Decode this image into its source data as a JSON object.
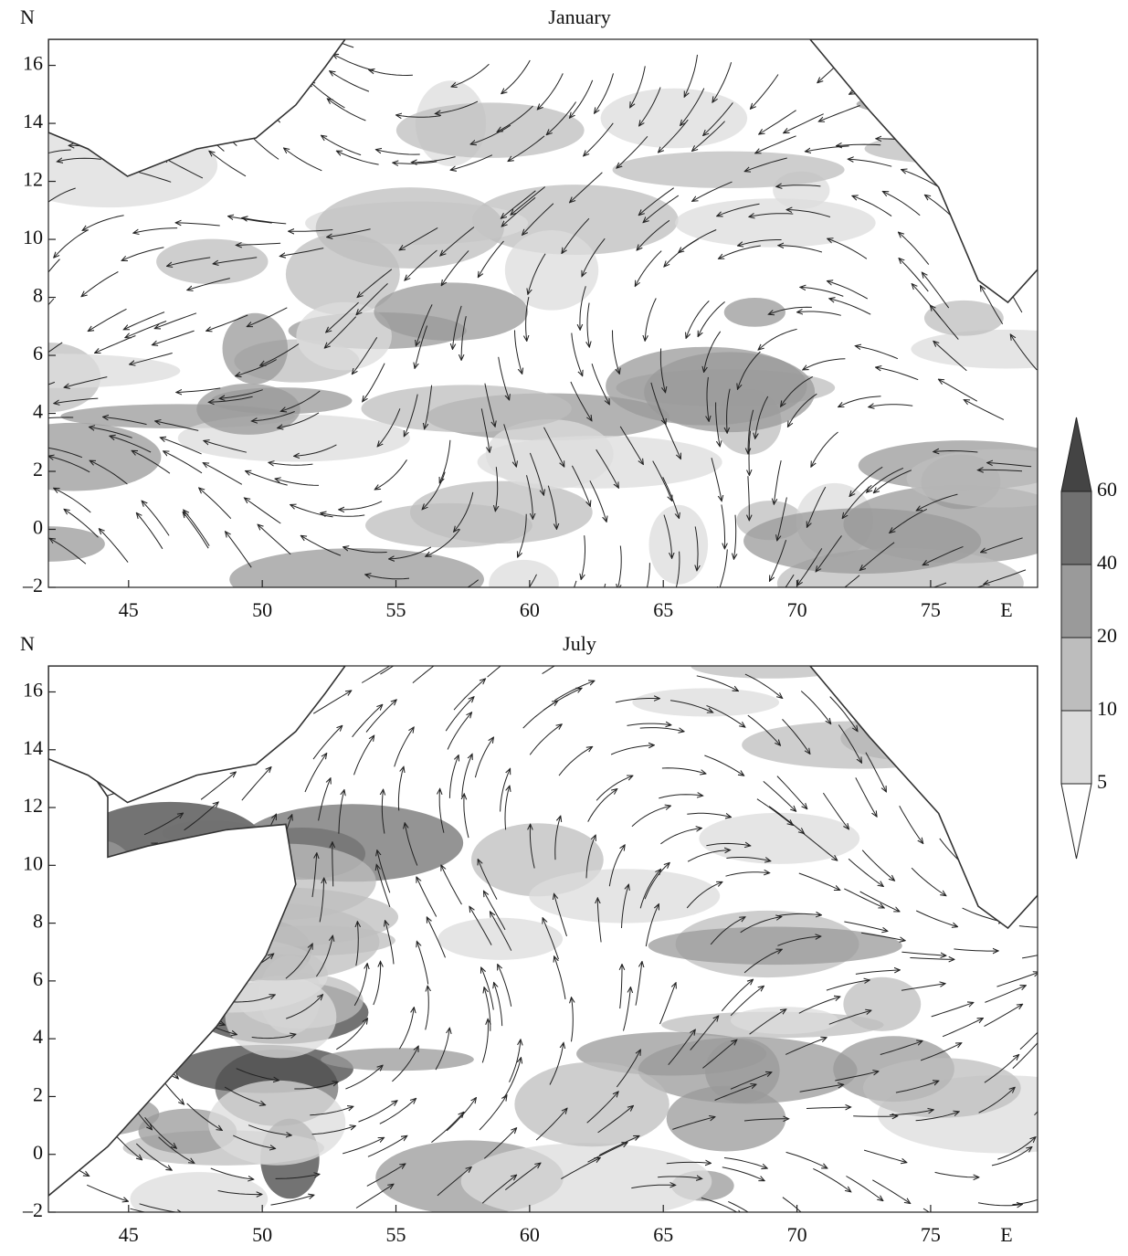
{
  "chart_data": [
    {
      "type": "map",
      "title": "January",
      "xlabel": "E",
      "ylabel": "N",
      "xlim": [
        42,
        79
      ],
      "ylim": [
        -2,
        16.9
      ],
      "xticks": [
        45,
        50,
        55,
        60,
        65,
        70,
        75
      ],
      "yticks": [
        {
          "value": -2,
          "label": "–2"
        },
        0,
        2,
        4,
        6,
        8,
        10,
        12,
        14,
        16
      ]
    },
    {
      "type": "map",
      "title": "July",
      "xlabel": "E",
      "ylabel": "N",
      "xlim": [
        42,
        79
      ],
      "ylim": [
        -2,
        16.9
      ],
      "xticks": [
        45,
        50,
        55,
        60,
        65,
        70,
        75
      ],
      "yticks": [
        {
          "value": -2,
          "label": "–2"
        },
        0,
        2,
        4,
        6,
        8,
        10,
        12,
        14,
        16
      ]
    }
  ],
  "colorbar": {
    "levels": [
      5,
      10,
      20,
      40,
      60
    ],
    "colors": [
      "#ffffff",
      "#dcdcdc",
      "#bdbdbd",
      "#9a9a9a",
      "#707070",
      "#444444"
    ]
  }
}
